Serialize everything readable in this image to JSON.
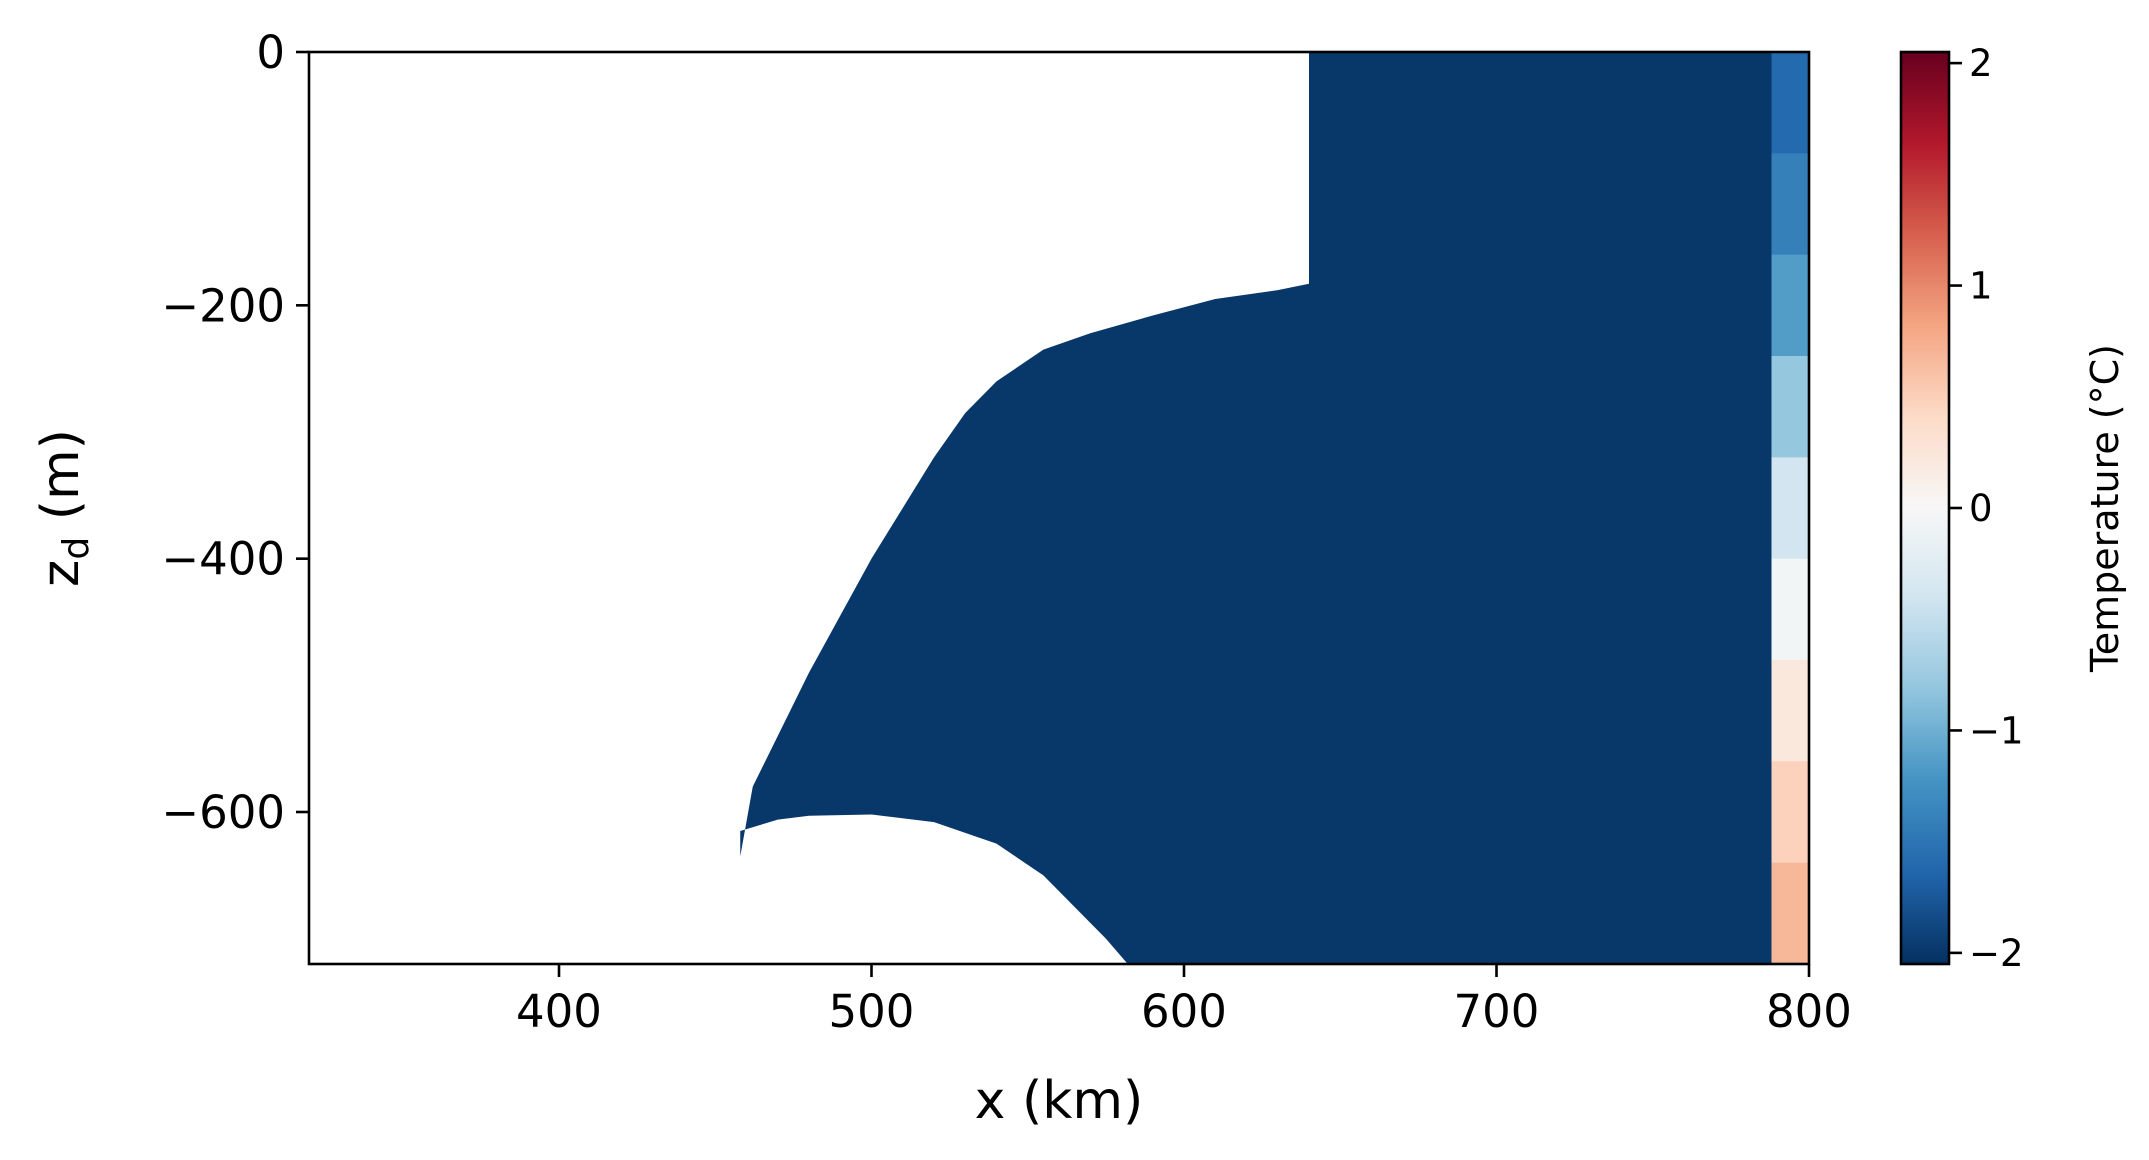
{
  "chart_data": {
    "type": "heatmap",
    "title": "",
    "xlabel": "x (km)",
    "ylabel_main": "z",
    "ylabel_sub": "d",
    "ylabel_unit": " (m)",
    "xlim": [
      320,
      800
    ],
    "ylim": [
      -720,
      0
    ],
    "xticks": [
      400,
      500,
      600,
      700,
      800
    ],
    "xtick_labels": [
      "400",
      "500",
      "600",
      "700",
      "800"
    ],
    "yticks": [
      0,
      -200,
      -400,
      -600
    ],
    "ytick_labels": [
      "0",
      "−200",
      "−400",
      "−600"
    ],
    "colormap": "RdBu_r",
    "colorbar": {
      "label": "Temperature (°C)",
      "vmin": -2.05,
      "vmax": 2.05,
      "ticks": [
        2,
        1,
        0,
        -1,
        -2
      ],
      "tick_labels": [
        "2",
        "1",
        "0",
        "−1",
        "−2"
      ]
    },
    "fill_value_degC": -2.0,
    "ice_shelf_base": {
      "x_km": [
        640,
        640,
        630,
        610,
        590,
        570,
        555,
        540,
        530,
        520,
        510,
        500,
        490,
        480,
        470,
        462,
        458
      ],
      "z_m": [
        0,
        -183,
        -188,
        -195,
        -208,
        -222,
        -235,
        -260,
        -285,
        -320,
        -360,
        -400,
        -445,
        -490,
        -540,
        -580,
        -635
      ]
    },
    "seabed": {
      "x_km": [
        458,
        470,
        480,
        500,
        520,
        540,
        555,
        565,
        575,
        582
      ],
      "z_m": [
        -615,
        -606,
        -603,
        -602,
        -608,
        -625,
        -650,
        -675,
        -700,
        -720
      ]
    },
    "boundary_profile": {
      "x_start_km": 788,
      "x_end_km": 800,
      "z_m": [
        0,
        -80,
        -160,
        -240,
        -320,
        -400,
        -480,
        -560,
        -640,
        -720
      ],
      "temperature_degC": [
        -1.7,
        -1.5,
        -1.3,
        -1.0,
        -0.6,
        -0.2,
        0.1,
        0.35,
        0.6,
        0.75
      ]
    }
  }
}
